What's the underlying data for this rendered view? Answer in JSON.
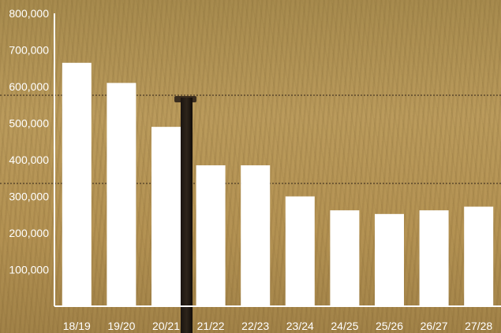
{
  "chart_data": {
    "type": "bar",
    "categories": [
      "18/19",
      "19/20",
      "20/21",
      "21/22",
      "22/23",
      "23/24",
      "24/25",
      "25/26",
      "26/27",
      "27/28"
    ],
    "values": [
      665000,
      610000,
      490000,
      385000,
      385000,
      300000,
      262000,
      252000,
      262000,
      272000
    ],
    "ylim": [
      0,
      800000
    ],
    "yticks": [
      100000,
      200000,
      300000,
      400000,
      500000,
      600000,
      700000,
      800000
    ],
    "ytick_labels": [
      "100,000",
      "200,000",
      "300,000",
      "400,000",
      "500,000",
      "600,000",
      "700,000",
      "800,000"
    ],
    "bar_color": "#ffffff",
    "axis_color": "#ffffff",
    "grid": false,
    "legend": "none"
  },
  "background": "dry-grass-field-with-fence-post-photo"
}
